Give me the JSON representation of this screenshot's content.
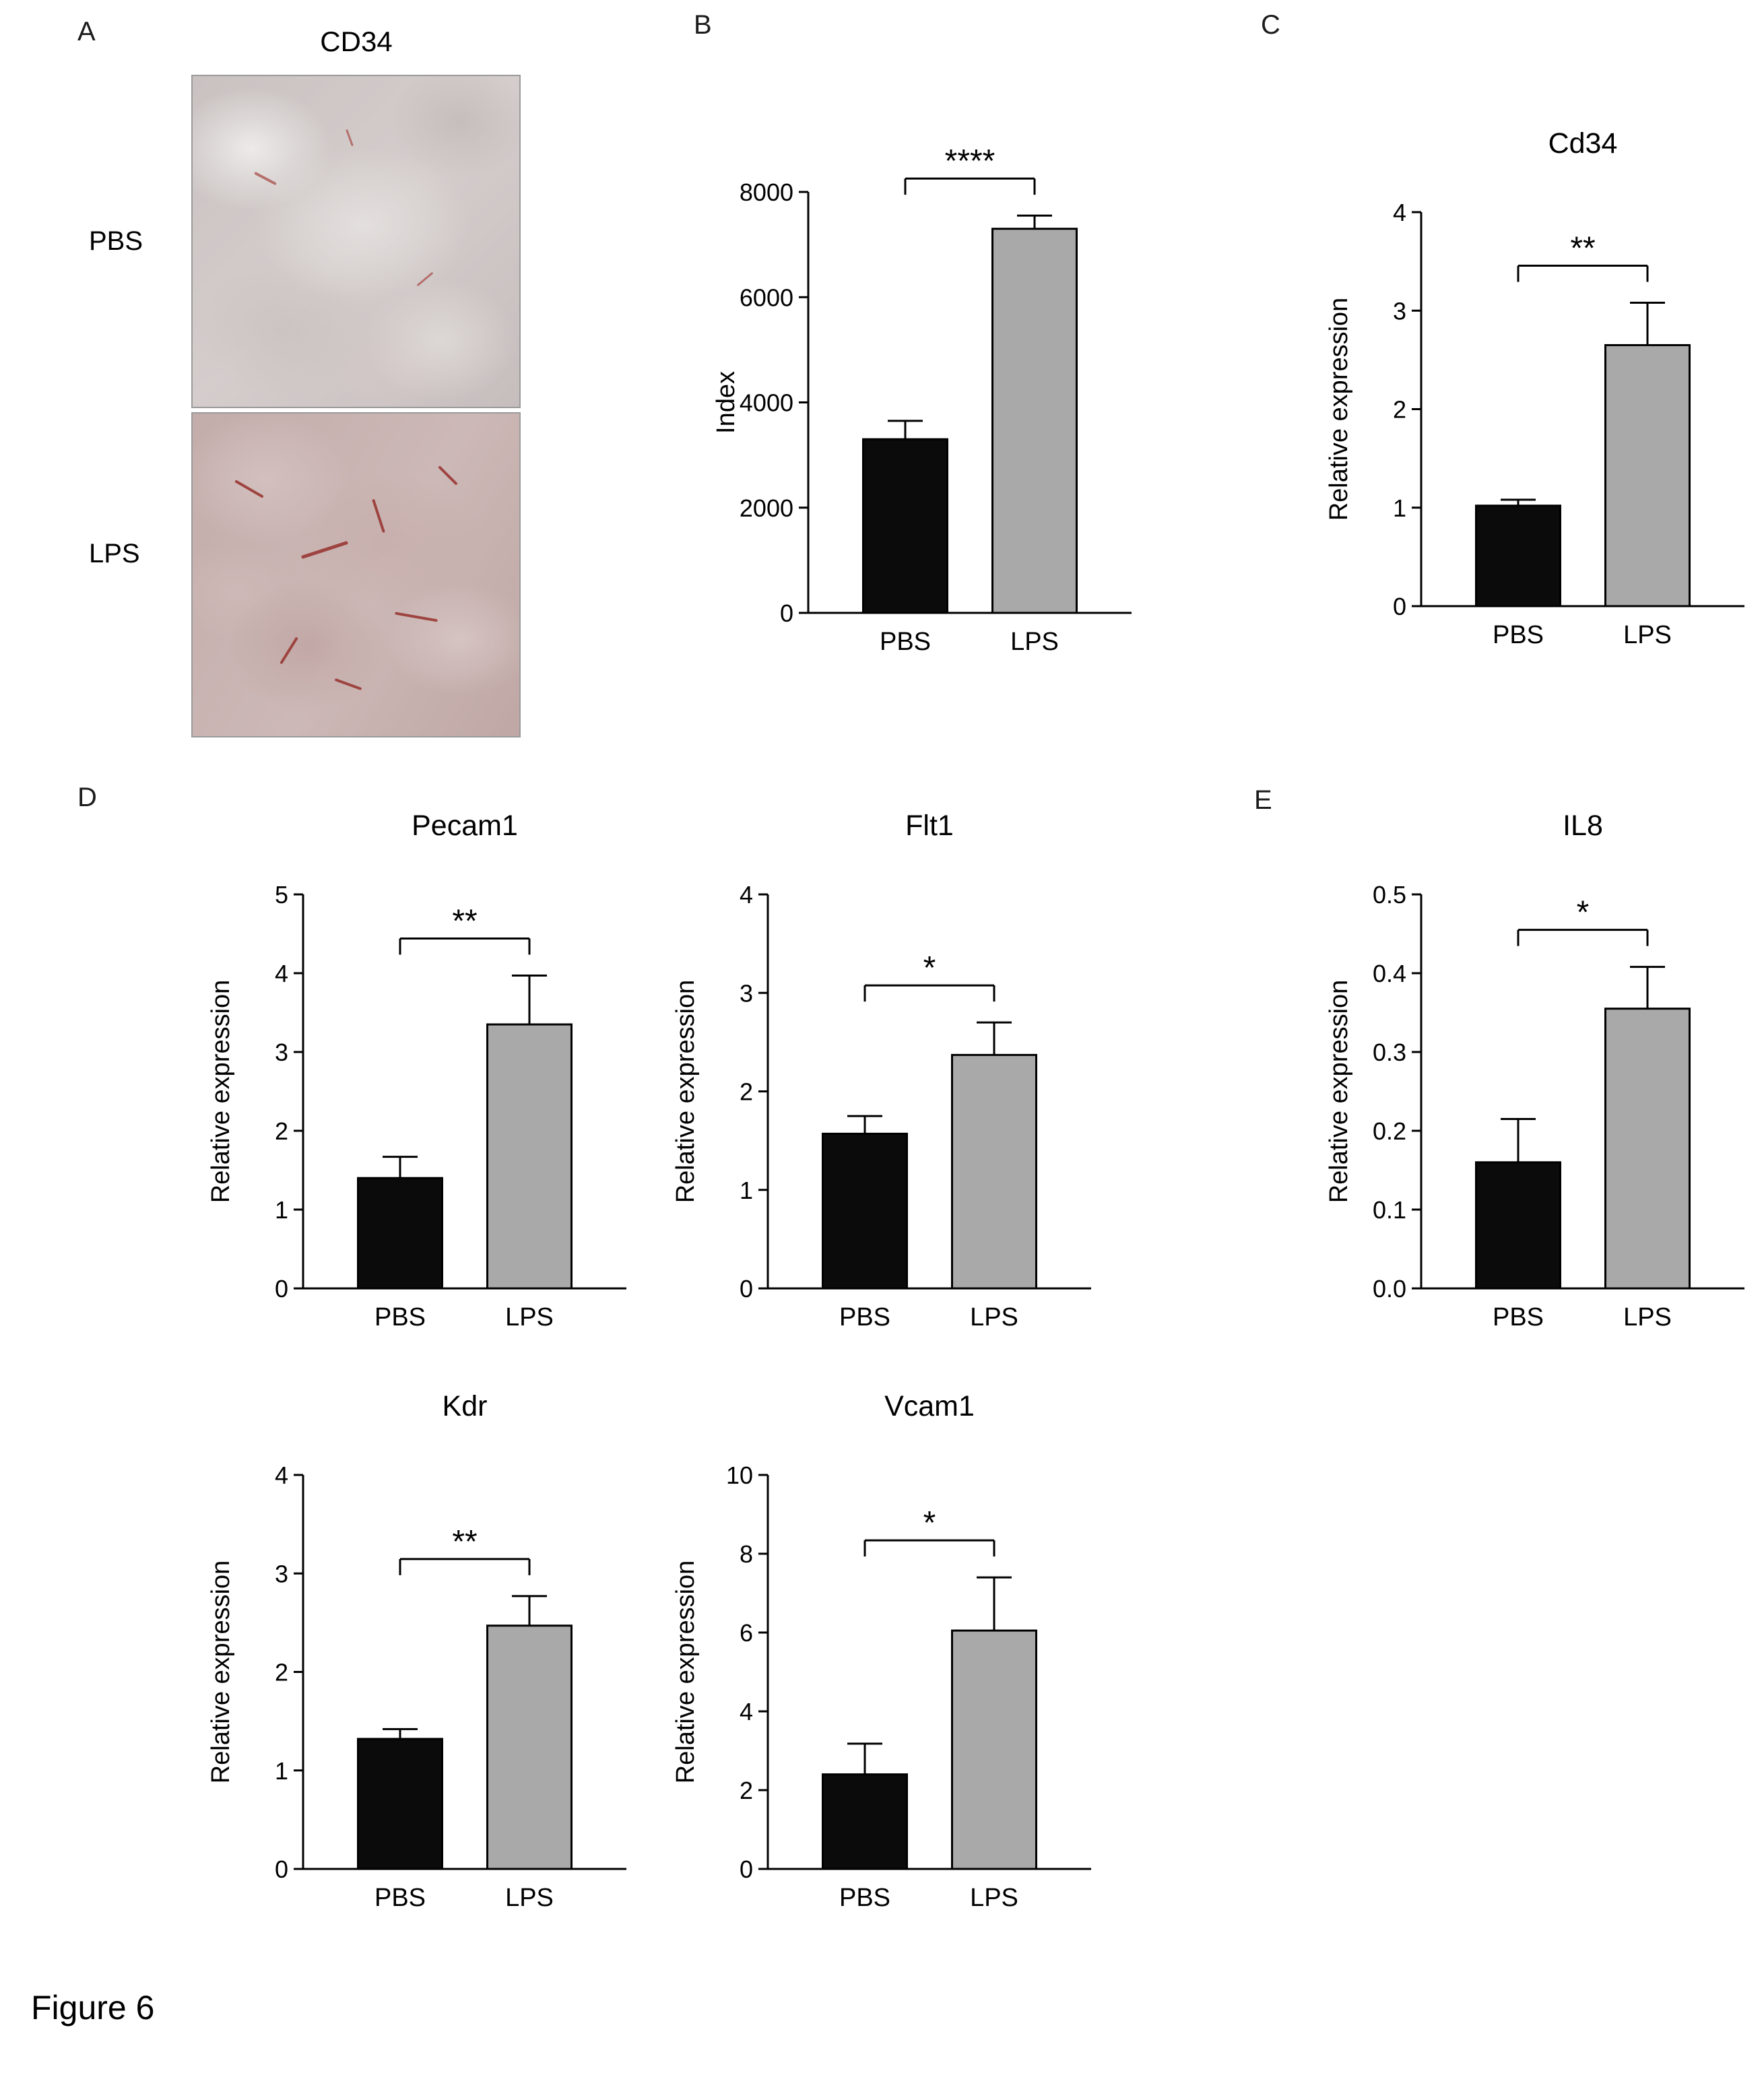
{
  "figure_label": "Figure 6",
  "panels": {
    "a": {
      "letter": "A",
      "stain_title": "CD34",
      "rows": [
        {
          "label": "PBS"
        },
        {
          "label": "LPS"
        }
      ]
    },
    "b": {
      "letter": "B"
    },
    "c": {
      "letter": "C"
    },
    "d": {
      "letter": "D"
    },
    "e": {
      "letter": "E"
    }
  },
  "colors": {
    "pbs_bar": "#0b0b0b",
    "lps_bar": "#a9a9a9",
    "axis": "#000000"
  },
  "chart_data": [
    {
      "id": "index",
      "panel": "B",
      "type": "bar",
      "title": "",
      "ylabel": "Index",
      "ymax": 8000,
      "ytick_values": [
        0,
        2000,
        4000,
        6000,
        8000
      ],
      "ytick_labels": [
        "0",
        "2000",
        "4000",
        "6000",
        "8000"
      ],
      "categories": [
        "PBS",
        "LPS"
      ],
      "values": [
        3300,
        7300
      ],
      "errors": [
        350,
        250
      ],
      "significance": "****"
    },
    {
      "id": "cd34",
      "panel": "C",
      "type": "bar",
      "title": "Cd34",
      "ylabel": "Relative expression",
      "ymax": 4,
      "ytick_values": [
        0,
        1,
        2,
        3,
        4
      ],
      "ytick_labels": [
        "0",
        "1",
        "2",
        "3",
        "4"
      ],
      "categories": [
        "PBS",
        "LPS"
      ],
      "values": [
        1.02,
        2.65
      ],
      "errors": [
        0.06,
        0.43
      ],
      "significance": "**"
    },
    {
      "id": "pecam1",
      "panel": "D",
      "type": "bar",
      "title": "Pecam1",
      "ylabel": "Relative expression",
      "ymax": 5,
      "ytick_values": [
        0,
        1,
        2,
        3,
        4,
        5
      ],
      "ytick_labels": [
        "0",
        "1",
        "2",
        "3",
        "4",
        "5"
      ],
      "categories": [
        "PBS",
        "LPS"
      ],
      "values": [
        1.4,
        3.35
      ],
      "errors": [
        0.27,
        0.62
      ],
      "significance": "**"
    },
    {
      "id": "flt1",
      "panel": "D",
      "type": "bar",
      "title": "Flt1",
      "ylabel": "Relative expression",
      "ymax": 4,
      "ytick_values": [
        0,
        1,
        2,
        3,
        4
      ],
      "ytick_labels": [
        "0",
        "1",
        "2",
        "3",
        "4"
      ],
      "categories": [
        "PBS",
        "LPS"
      ],
      "values": [
        1.57,
        2.37
      ],
      "errors": [
        0.18,
        0.33
      ],
      "significance": "*"
    },
    {
      "id": "il8",
      "panel": "E",
      "type": "bar",
      "title": "IL8",
      "ylabel": "Relative expression",
      "ymax": 0.5,
      "ytick_values": [
        0,
        0.1,
        0.2,
        0.3,
        0.4,
        0.5
      ],
      "ytick_labels": [
        "0.0",
        "0.1",
        "0.2",
        "0.3",
        "0.4",
        "0.5"
      ],
      "categories": [
        "PBS",
        "LPS"
      ],
      "values": [
        0.16,
        0.355
      ],
      "errors": [
        0.055,
        0.053
      ],
      "significance": "*"
    },
    {
      "id": "kdr",
      "panel": "D",
      "type": "bar",
      "title": "Kdr",
      "ylabel": "Relative expression",
      "ymax": 4,
      "ytick_values": [
        0,
        1,
        2,
        3,
        4
      ],
      "ytick_labels": [
        "0",
        "1",
        "2",
        "3",
        "4"
      ],
      "categories": [
        "PBS",
        "LPS"
      ],
      "values": [
        1.32,
        2.47
      ],
      "errors": [
        0.1,
        0.3
      ],
      "significance": "**"
    },
    {
      "id": "vcam1",
      "panel": "D",
      "type": "bar",
      "title": "Vcam1",
      "ylabel": "Relative expression",
      "ymax": 10,
      "ytick_values": [
        0,
        2,
        4,
        6,
        8,
        10
      ],
      "ytick_labels": [
        "0",
        "2",
        "4",
        "6",
        "8",
        "10"
      ],
      "categories": [
        "PBS",
        "LPS"
      ],
      "values": [
        2.4,
        6.05
      ],
      "errors": [
        0.78,
        1.35
      ],
      "significance": "*"
    }
  ]
}
